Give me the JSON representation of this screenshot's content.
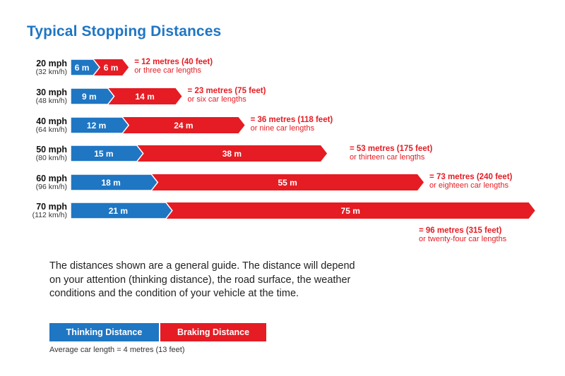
{
  "title": "Typical Stopping Distances",
  "colors": {
    "thinking": "#1f76c3",
    "braking": "#e51c23",
    "title": "#1f76c3",
    "text": "#222222"
  },
  "chart_data": {
    "type": "bar",
    "stacked": true,
    "orientation": "horizontal",
    "title": "Typical Stopping Distances",
    "categories": [
      {
        "mph": "20 mph",
        "kmh": "(32 km/h)"
      },
      {
        "mph": "30 mph",
        "kmh": "(48 km/h)"
      },
      {
        "mph": "40 mph",
        "kmh": "(64 km/h)"
      },
      {
        "mph": "50 mph",
        "kmh": "(80 km/h)"
      },
      {
        "mph": "60 mph",
        "kmh": "(96 km/h)"
      },
      {
        "mph": "70 mph",
        "kmh": "(112 km/h)"
      }
    ],
    "series": [
      {
        "name": "Thinking Distance",
        "values": [
          6,
          9,
          12,
          15,
          18,
          21
        ],
        "labels": [
          "6 m",
          "9 m",
          "12 m",
          "15 m",
          "18 m",
          "21 m"
        ]
      },
      {
        "name": "Braking Distance",
        "values": [
          6,
          14,
          24,
          38,
          55,
          75
        ],
        "labels": [
          "6 m",
          "14 m",
          "24 m",
          "38 m",
          "55 m",
          "75 m"
        ]
      }
    ],
    "totals": [
      {
        "line1": "= 12 metres (40 feet)",
        "line2": "or three car lengths"
      },
      {
        "line1": "= 23 metres (75 feet)",
        "line2": "or six car lengths"
      },
      {
        "line1": "= 36 metres (118 feet)",
        "line2": "or nine car lengths"
      },
      {
        "line1": "= 53 metres (175 feet)",
        "line2": "or thirteen car lengths"
      },
      {
        "line1": "= 73 metres (240 feet)",
        "line2": "or eighteen car lengths"
      },
      {
        "line1": "= 96 metres (315 feet)",
        "line2": "or twenty-four car lengths"
      }
    ]
  },
  "guide_text": "The distances shown are a general guide. The distance will depend on your attention (thinking distance), the road surface, the weather conditions and the condition of your vehicle at the time.",
  "legend": {
    "thinking": "Thinking Distance",
    "braking": "Braking Distance"
  },
  "car_note": "Average car length = 4 metres (13 feet)"
}
